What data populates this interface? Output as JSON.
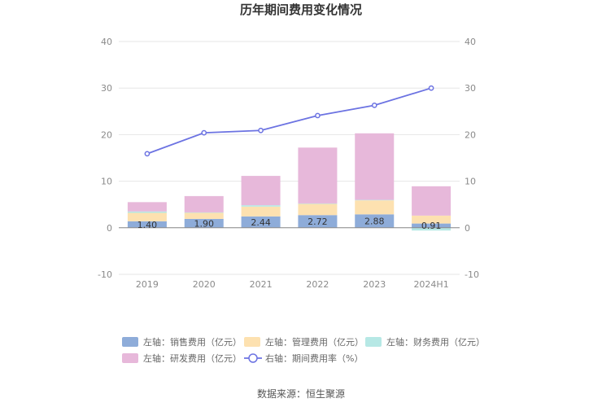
{
  "chart_data": {
    "type": "bar",
    "title": "历年期间费用变化情况",
    "categories": [
      "2019",
      "2020",
      "2021",
      "2022",
      "2023",
      "2024H1"
    ],
    "series": [
      {
        "name": "左轴：销售费用（亿元）",
        "axis": "left",
        "type": "bar",
        "color": "#8eacd9",
        "values": [
          1.4,
          1.9,
          2.44,
          2.72,
          2.88,
          0.91
        ],
        "labels": [
          "1.40",
          "1.90",
          "2.44",
          "2.72",
          "2.88",
          "0.91"
        ]
      },
      {
        "name": "左轴：管理费用（亿元）",
        "axis": "left",
        "type": "bar",
        "color": "#fde1b0",
        "values": [
          1.8,
          1.3,
          2.1,
          2.4,
          3.0,
          1.7
        ]
      },
      {
        "name": "左轴：财务费用（亿元）",
        "axis": "left",
        "type": "bar",
        "color": "#b6e8e5",
        "values": [
          0.3,
          0.1,
          0.3,
          0.1,
          0.1,
          -0.6
        ]
      },
      {
        "name": "左轴：研发费用（亿元）",
        "axis": "left",
        "type": "bar",
        "color": "#e7b8da",
        "values": [
          2.0,
          3.5,
          6.3,
          12.0,
          14.3,
          6.3
        ]
      },
      {
        "name": "右轴：期间费用率（%）",
        "axis": "right",
        "type": "line",
        "color": "#6c73e2",
        "values": [
          15.9,
          20.4,
          20.9,
          24.1,
          26.3,
          30.0
        ]
      }
    ],
    "y_left": {
      "min": -10,
      "max": 40,
      "ticks": [
        "-10",
        "0",
        "10",
        "20",
        "30",
        "40"
      ]
    },
    "y_right": {
      "min": -10,
      "max": 40,
      "ticks": [
        "-10",
        "0",
        "10",
        "20",
        "30",
        "40"
      ]
    },
    "grid": true,
    "legend_position": "bottom",
    "source": "数据来源：恒生聚源"
  }
}
